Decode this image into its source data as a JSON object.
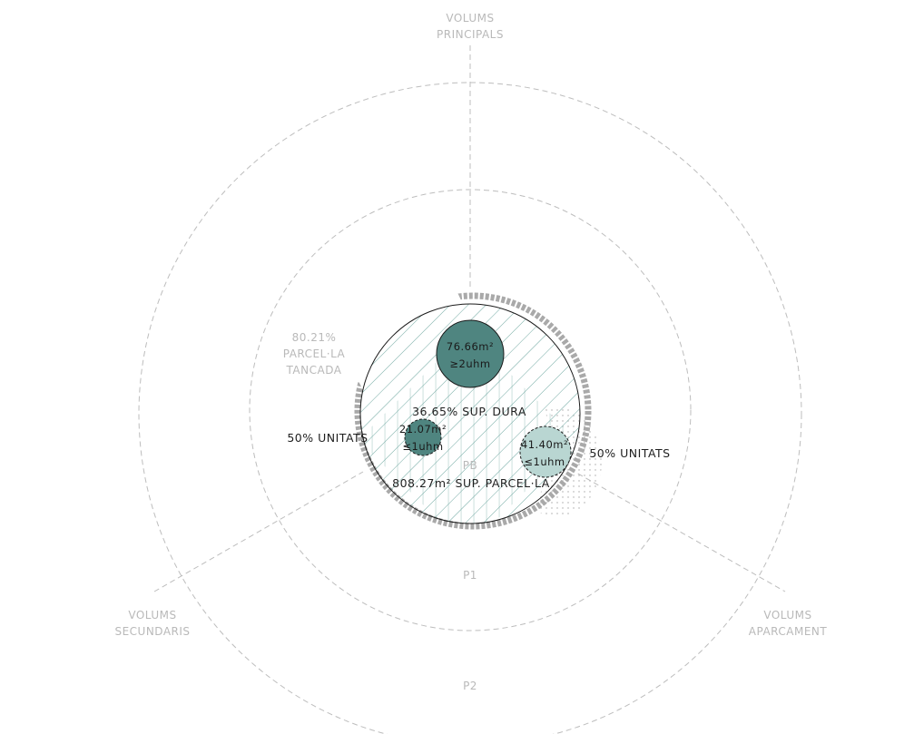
{
  "axes": {
    "principals": [
      "VOLUMS",
      "PRINCIPALS"
    ],
    "secundaris": [
      "VOLUMS",
      "SECUNDARIS"
    ],
    "aparcament": [
      "VOLUMS",
      "APARCAMENT"
    ]
  },
  "rings": {
    "p0": "PB",
    "p1": "P1",
    "p2": "P2"
  },
  "enclosed": {
    "percent": "80.21%",
    "line1": "PARCEL·LA",
    "line2": "TANCADA"
  },
  "plot": {
    "hard_surface": "36.65% SUP. DURA",
    "area": "808.27m² SUP. PARCEL·LA"
  },
  "units": {
    "left": "50% UNITATS",
    "right": "50% UNITATS"
  },
  "bubbles": {
    "main": {
      "area": "76.66m²",
      "units": "≥2uhm",
      "color": "#4f8580"
    },
    "secondary": {
      "area": "21.07m²",
      "units": "≤1uhm",
      "color": "#4f8580"
    },
    "parking": {
      "area": "41.40m²",
      "units": "≤1uhm",
      "color": "#b9d6d2"
    }
  },
  "colors": {
    "guides": "#bdbdbd",
    "hatch": "#6fa8a1",
    "perimeter": "#a9a9a9"
  }
}
